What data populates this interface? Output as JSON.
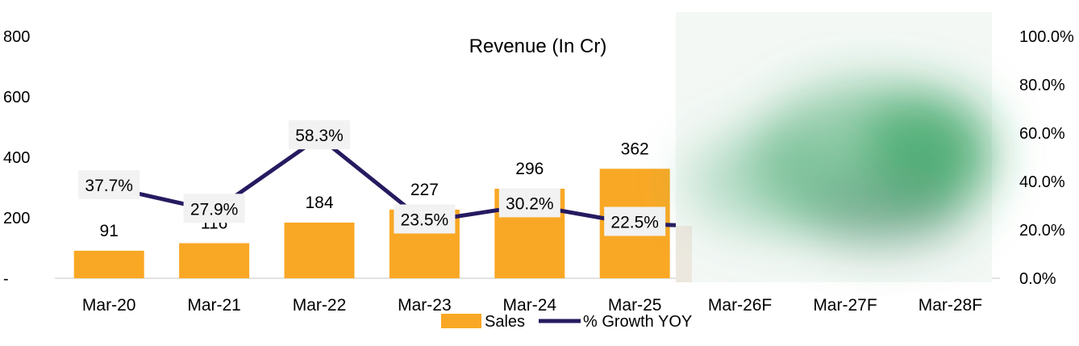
{
  "chart_data": {
    "type": "bar+line",
    "title": "Revenue (In Cr)",
    "categories": [
      "Mar-20",
      "Mar-21",
      "Mar-22",
      "Mar-23",
      "Mar-24",
      "Mar-25",
      "Mar-26F",
      "Mar-27F",
      "Mar-28F"
    ],
    "series": [
      {
        "name": "Sales",
        "type": "bar",
        "axis": "left",
        "values": [
          91,
          116,
          184,
          227,
          296,
          362,
          null,
          null,
          null
        ],
        "labels": [
          "91",
          "116",
          "184",
          "227",
          "296",
          "362",
          "",
          "",
          ""
        ]
      },
      {
        "name": "% Growth YOY",
        "type": "line",
        "axis": "right",
        "values": [
          37.7,
          27.9,
          58.3,
          23.5,
          30.2,
          22.5,
          null,
          null,
          null
        ],
        "labels": [
          "37.7%",
          "27.9%",
          "58.3%",
          "23.5%",
          "30.2%",
          "22.5%",
          "",
          "",
          ""
        ]
      }
    ],
    "left_axis": {
      "ylim": [
        0,
        800
      ],
      "ticks": [
        0,
        200,
        400,
        600,
        800
      ],
      "tick_labels": [
        "-",
        "200",
        "400",
        "600",
        "800"
      ]
    },
    "right_axis": {
      "ylim": [
        0,
        100
      ],
      "ticks": [
        0,
        20,
        40,
        60,
        80,
        100
      ],
      "tick_labels": [
        "0.0%",
        "20.0%",
        "40.0%",
        "60.0%",
        "80.0%",
        "100.0%"
      ]
    },
    "legend": {
      "position": "bottom",
      "entries": [
        "Sales",
        "% Growth YOY"
      ]
    },
    "colors": {
      "bar": "#F9A825",
      "line": "#261A60",
      "axis": "#D9D9D9",
      "label_bg": "#F2F2F2",
      "blur": "#2E9E5B"
    },
    "forecast_obscured": true
  }
}
